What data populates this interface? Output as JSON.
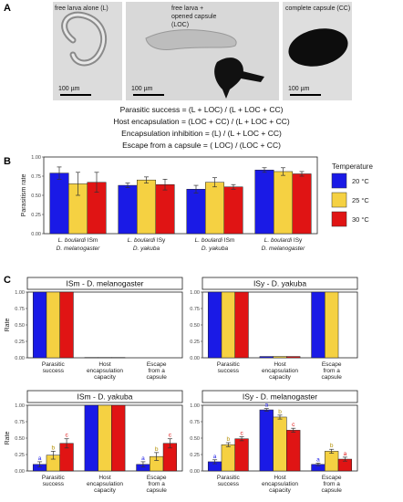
{
  "panel_labels": {
    "a": "A",
    "b": "B",
    "c": "C"
  },
  "panel_a": {
    "photos": [
      {
        "caption": "free larva alone (L)",
        "scale_label": "100 µm"
      },
      {
        "caption": "free larva +",
        "caption2": "opened capsule",
        "caption3": "(LOC)",
        "scale_label": "100 µm"
      },
      {
        "caption": "complete capsule (CC)",
        "scale_label": "100 µm"
      }
    ],
    "formulas": [
      "Parasitic success = (L + LOC) / (L + LOC + CC)",
      "Host encapsulation = (LOC + CC) / (L + LOC + CC)",
      "Encapsulation inhibition = (L) / (L + LOC + CC)",
      "Escape from a capsule = ( LOC) / (LOC + CC)"
    ]
  },
  "legend": {
    "title": "Temperature",
    "items": [
      {
        "label": "20 °C",
        "color": "#1a1ae6"
      },
      {
        "label": "25 °C",
        "color": "#f5d142"
      },
      {
        "label": "30 °C",
        "color": "#e01414"
      }
    ]
  },
  "chart_data": [
    {
      "id": "B",
      "type": "bar",
      "ylabel": "Parasitism rate",
      "ylim": [
        0,
        1.0
      ],
      "yticks": [
        "0.00",
        "0.25",
        "0.50",
        "0.75",
        "1.00"
      ],
      "categories": [
        {
          "line1a": "L. boulardi",
          "line1b": " ISm",
          "line2": "D. melanogaster"
        },
        {
          "line1a": "L. boulardi",
          "line1b": " ISy",
          "line2": "D. yakuba"
        },
        {
          "line1a": "L. boulardi",
          "line1b": " ISm",
          "line2": "D. yakuba"
        },
        {
          "line1a": "L. boulardi",
          "line1b": " ISy",
          "line2": "D. melanogaster"
        }
      ],
      "series": [
        {
          "name": "20 °C",
          "values": [
            0.79,
            0.63,
            0.58,
            0.83
          ],
          "err": [
            0.08,
            0.03,
            0.05,
            0.03
          ]
        },
        {
          "name": "25 °C",
          "values": [
            0.65,
            0.7,
            0.67,
            0.81
          ],
          "err": [
            0.15,
            0.04,
            0.06,
            0.05
          ]
        },
        {
          "name": "30 °C",
          "values": [
            0.67,
            0.64,
            0.61,
            0.78
          ],
          "err": [
            0.13,
            0.07,
            0.03,
            0.03
          ]
        }
      ]
    },
    {
      "id": "C1",
      "type": "bar",
      "strip": "ISm - D. melanogaster",
      "ylabel": "Rate",
      "ylim": [
        0,
        1.0
      ],
      "yticks": [
        "0.00",
        "0.25",
        "0.50",
        "0.75",
        "1.00"
      ],
      "categories": [
        [
          "Parasitic",
          "success"
        ],
        [
          "Host",
          "encapsulation",
          "capacity"
        ],
        [
          "Escape",
          "from a",
          "capsule"
        ]
      ],
      "series": [
        {
          "name": "20 °C",
          "values": [
            1.0,
            0.005,
            0
          ]
        },
        {
          "name": "25 °C",
          "values": [
            1.0,
            0.005,
            0
          ]
        },
        {
          "name": "30 °C",
          "values": [
            1.0,
            0.005,
            0
          ]
        }
      ]
    },
    {
      "id": "C2",
      "type": "bar",
      "strip": "ISy - D. yakuba",
      "ylim": [
        0,
        1.0
      ],
      "yticks": [
        "0.00",
        "0.25",
        "0.50",
        "0.75",
        "1.00"
      ],
      "categories": [
        [
          "Parasitic",
          "success"
        ],
        [
          "Host",
          "encapsulation",
          "capacity"
        ],
        [
          "Escape",
          "from a",
          "capsule"
        ]
      ],
      "series": [
        {
          "name": "20 °C",
          "values": [
            1.0,
            0.02,
            1.0
          ]
        },
        {
          "name": "25 °C",
          "values": [
            1.0,
            0.02,
            1.0
          ]
        },
        {
          "name": "30 °C",
          "values": [
            1.0,
            0.02,
            0
          ]
        }
      ]
    },
    {
      "id": "C3",
      "type": "bar",
      "strip": "ISm - D. yakuba",
      "ylabel": "Rate",
      "ylim": [
        0,
        1.0
      ],
      "yticks": [
        "0.00",
        "0.25",
        "0.50",
        "0.75",
        "1.00"
      ],
      "categories": [
        [
          "Parasitic",
          "success"
        ],
        [
          "Host",
          "encapsulation",
          "capacity"
        ],
        [
          "Escape",
          "from a",
          "capsule"
        ]
      ],
      "series": [
        {
          "name": "20 °C",
          "values": [
            0.1,
            1.0,
            0.1
          ],
          "err": [
            0.04,
            0,
            0.04
          ],
          "sig": [
            "a",
            "",
            "a"
          ]
        },
        {
          "name": "25 °C",
          "values": [
            0.24,
            1.0,
            0.22
          ],
          "err": [
            0.06,
            0,
            0.06
          ],
          "sig": [
            "b",
            "",
            "b"
          ]
        },
        {
          "name": "30 °C",
          "values": [
            0.42,
            1.0,
            0.42
          ],
          "err": [
            0.07,
            0,
            0.07
          ],
          "sig": [
            "c",
            "",
            "c"
          ]
        }
      ]
    },
    {
      "id": "C4",
      "type": "bar",
      "strip": "ISy - D. melanogaster",
      "ylim": [
        0,
        1.0
      ],
      "yticks": [
        "0.00",
        "0.25",
        "0.50",
        "0.75",
        "1.00"
      ],
      "categories": [
        [
          "Parasitic",
          "success"
        ],
        [
          "Host",
          "encapsulation",
          "capacity"
        ],
        [
          "Escape",
          "from a",
          "capsule"
        ]
      ],
      "series": [
        {
          "name": "20 °C",
          "values": [
            0.14,
            0.93,
            0.1
          ],
          "err": [
            0.03,
            0.02,
            0.02
          ],
          "sig": [
            "a",
            "a",
            "a"
          ]
        },
        {
          "name": "25 °C",
          "values": [
            0.4,
            0.82,
            0.3
          ],
          "err": [
            0.03,
            0.03,
            0.03
          ],
          "sig": [
            "b",
            "b",
            "b"
          ]
        },
        {
          "name": "30 °C",
          "values": [
            0.49,
            0.62,
            0.18
          ],
          "err": [
            0.03,
            0.03,
            0.03
          ],
          "sig": [
            "c",
            "c",
            "a"
          ]
        }
      ]
    }
  ]
}
